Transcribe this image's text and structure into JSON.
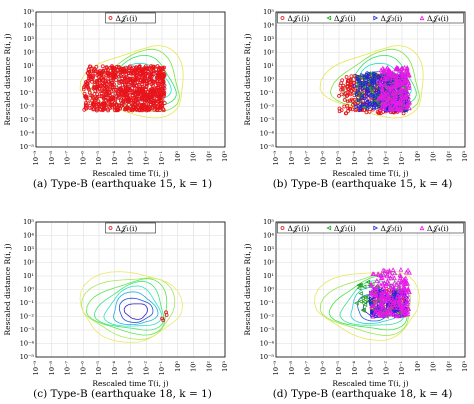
{
  "chart_data": [
    {
      "type": "scatter",
      "caption": "(a) Type-B (earthquake 15, k = 1)",
      "xlabel": "Rescaled time T(i, j)",
      "ylabel": "Rescaled distance R(i, j)",
      "x_scale": "log",
      "y_scale": "log",
      "xlim": [
        1e-09,
        1000
      ],
      "ylim": [
        1e-05,
        100000
      ],
      "grid": true,
      "legend_position": "top",
      "x_ticks": [
        "10⁻⁹",
        "10⁻⁸",
        "10⁻⁷",
        "10⁻⁶",
        "10⁻⁵",
        "10⁻⁴",
        "10⁻³",
        "10⁻²",
        "10⁻¹",
        "10⁰",
        "10¹",
        "10²",
        "10³"
      ],
      "y_ticks": [
        "10⁻⁵",
        "10⁻⁴",
        "10⁻³",
        "10⁻²",
        "10⁻¹",
        "10⁰",
        "10¹",
        "10²",
        "10³",
        "10⁴",
        "10⁵"
      ],
      "series": [
        {
          "name": "Δ𝒥₁(i)",
          "color": "#e8141a",
          "marker": "circle",
          "x_range": [
            1e-06,
            0.15
          ],
          "y_range": [
            0.005,
            10
          ],
          "points": 900
        }
      ],
      "contours": {
        "center": [
          0.01,
          0.2
        ],
        "levels": 6
      }
    },
    {
      "type": "scatter",
      "caption": "(b) Type-B (earthquake 15, k = 4)",
      "xlabel": "Rescaled time T(i, j)",
      "ylabel": "Rescaled distance R(i, j)",
      "x_scale": "log",
      "y_scale": "log",
      "xlim": [
        1e-09,
        1000
      ],
      "ylim": [
        1e-05,
        100000
      ],
      "grid": true,
      "legend_position": "top",
      "x_ticks": [
        "10⁻⁹",
        "10⁻⁸",
        "10⁻⁷",
        "10⁻⁶",
        "10⁻⁵",
        "10⁻⁴",
        "10⁻³",
        "10⁻²",
        "10⁻¹",
        "10⁰",
        "10¹",
        "10²",
        "10³"
      ],
      "y_ticks": [
        "10⁻⁵",
        "10⁻⁴",
        "10⁻³",
        "10⁻²",
        "10⁻¹",
        "10⁰",
        "10¹",
        "10²",
        "10³",
        "10⁴",
        "10⁵"
      ],
      "series": [
        {
          "name": "Δ𝒥₁(i)",
          "color": "#e8141a",
          "marker": "circle",
          "x_range": [
            1e-05,
            0.15
          ],
          "y_range": [
            0.003,
            2
          ],
          "points": 300
        },
        {
          "name": "Δ𝒥₂(i)",
          "color": "#1fa21f",
          "marker": "triangle-left",
          "x_range": [
            0.0001,
            0.2
          ],
          "y_range": [
            0.005,
            3
          ],
          "points": 200
        },
        {
          "name": "Δ𝒥₃(i)",
          "color": "#2424d8",
          "marker": "triangle-right",
          "x_range": [
            0.0001,
            0.25
          ],
          "y_range": [
            0.005,
            3
          ],
          "points": 180
        },
        {
          "name": "Δ𝒥₄(i)",
          "color": "#e81ae8",
          "marker": "triangle-up",
          "x_range": [
            0.003,
            0.3
          ],
          "y_range": [
            0.005,
            8
          ],
          "points": 220
        }
      ],
      "contours": {
        "center": [
          0.01,
          0.2
        ],
        "levels": 6
      }
    },
    {
      "type": "scatter",
      "caption": "(c) Type-B (earthquake 18, k = 1)",
      "xlabel": "Rescaled time T(i, j)",
      "ylabel": "Rescaled distance R(i, j)",
      "x_scale": "log",
      "y_scale": "log",
      "xlim": [
        1e-09,
        1000
      ],
      "ylim": [
        1e-05,
        100000
      ],
      "grid": true,
      "legend_position": "top",
      "x_ticks": [
        "10⁻⁹",
        "10⁻⁸",
        "10⁻⁷",
        "10⁻⁶",
        "10⁻⁵",
        "10⁻⁴",
        "10⁻³",
        "10⁻²",
        "10⁻¹",
        "10⁰",
        "10¹",
        "10²",
        "10³"
      ],
      "y_ticks": [
        "10⁻⁵",
        "10⁻⁴",
        "10⁻³",
        "10⁻²",
        "10⁻¹",
        "10⁰",
        "10¹",
        "10²",
        "10³",
        "10⁴",
        "10⁵"
      ],
      "series": [
        {
          "name": "Δ𝒥₁(i)",
          "color": "#e8141a",
          "marker": "circle",
          "x_range": [
            0.05,
            0.2
          ],
          "y_range": [
            0.005,
            0.03
          ],
          "points": 4
        }
      ],
      "contours": {
        "center": [
          0.003,
          0.02
        ],
        "levels": 8
      }
    },
    {
      "type": "scatter",
      "caption": "(d) Type-B (earthquake 18, k = 4)",
      "xlabel": "Rescaled time T(i, j)",
      "ylabel": "Rescaled distance R(i, j)",
      "x_scale": "log",
      "y_scale": "log",
      "xlim": [
        1e-09,
        1000
      ],
      "ylim": [
        1e-05,
        100000
      ],
      "grid": true,
      "legend_position": "top",
      "x_ticks": [
        "10⁻⁹",
        "10⁻⁸",
        "10⁻⁷",
        "10⁻⁶",
        "10⁻⁵",
        "10⁻⁴",
        "10⁻³",
        "10⁻²",
        "10⁻¹",
        "10⁰",
        "10¹",
        "10²",
        "10³"
      ],
      "y_ticks": [
        "10⁻⁵",
        "10⁻⁴",
        "10⁻³",
        "10⁻²",
        "10⁻¹",
        "10⁰",
        "10¹",
        "10²",
        "10³",
        "10⁴",
        "10⁵"
      ],
      "series": [
        {
          "name": "Δ𝒥₁(i)",
          "color": "#e8141a",
          "marker": "circle",
          "x_range": [
            0.001,
            0.2
          ],
          "y_range": [
            0.01,
            1
          ],
          "points": 60
        },
        {
          "name": "Δ𝒥₂(i)",
          "color": "#1fa21f",
          "marker": "triangle-left",
          "x_range": [
            0.0001,
            0.1
          ],
          "y_range": [
            0.01,
            5
          ],
          "points": 60
        },
        {
          "name": "Δ𝒥₃(i)",
          "color": "#2424d8",
          "marker": "triangle-right",
          "x_range": [
            0.001,
            0.2
          ],
          "y_range": [
            0.01,
            1
          ],
          "points": 120
        },
        {
          "name": "Δ𝒥₄(i)",
          "color": "#e81ae8",
          "marker": "triangle-up",
          "x_range": [
            0.001,
            0.3
          ],
          "y_range": [
            0.01,
            30
          ],
          "points": 200
        }
      ],
      "contours": {
        "center": [
          0.003,
          0.03
        ],
        "levels": 7
      }
    }
  ]
}
